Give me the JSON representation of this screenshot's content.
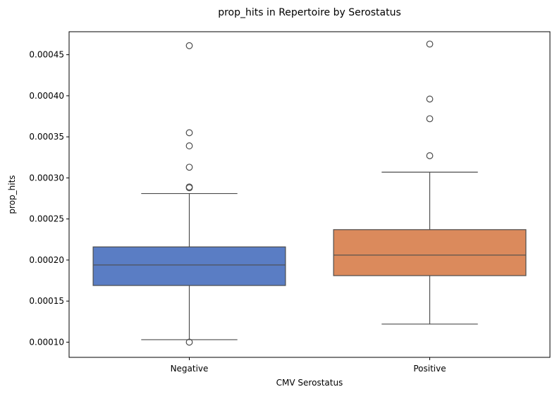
{
  "chart_data": {
    "type": "boxplot",
    "title": "prop_hits in Repertoire by Serostatus",
    "xlabel": "CMV Serostatus",
    "ylabel": "prop_hits",
    "categories": [
      "Negative",
      "Positive"
    ],
    "ylim": [
      8.15e-05,
      0.000478
    ],
    "yticks": [
      {
        "value": 0.0001,
        "label": "0.00010"
      },
      {
        "value": 0.00015,
        "label": "0.00015"
      },
      {
        "value": 0.0002,
        "label": "0.00020"
      },
      {
        "value": 0.00025,
        "label": "0.00025"
      },
      {
        "value": 0.0003,
        "label": "0.00030"
      },
      {
        "value": 0.00035,
        "label": "0.00035"
      },
      {
        "value": 0.0004,
        "label": "0.00040"
      },
      {
        "value": 0.00045,
        "label": "0.00045"
      }
    ],
    "grid": false,
    "boxes": [
      {
        "category": "Negative",
        "color": "#5a7dc4",
        "whisker_low": 0.000103,
        "q1": 0.000169,
        "median": 0.000194,
        "q3": 0.000216,
        "whisker_high": 0.000281,
        "outliers": [
          0.0001,
          0.000288,
          0.000289,
          0.000313,
          0.000339,
          0.000355,
          0.000461
        ]
      },
      {
        "category": "Positive",
        "color": "#db8a5c",
        "whisker_low": 0.000122,
        "q1": 0.000181,
        "median": 0.000206,
        "q3": 0.000237,
        "whisker_high": 0.000307,
        "outliers": [
          0.000327,
          0.000372,
          0.000396,
          0.000463
        ]
      }
    ]
  }
}
